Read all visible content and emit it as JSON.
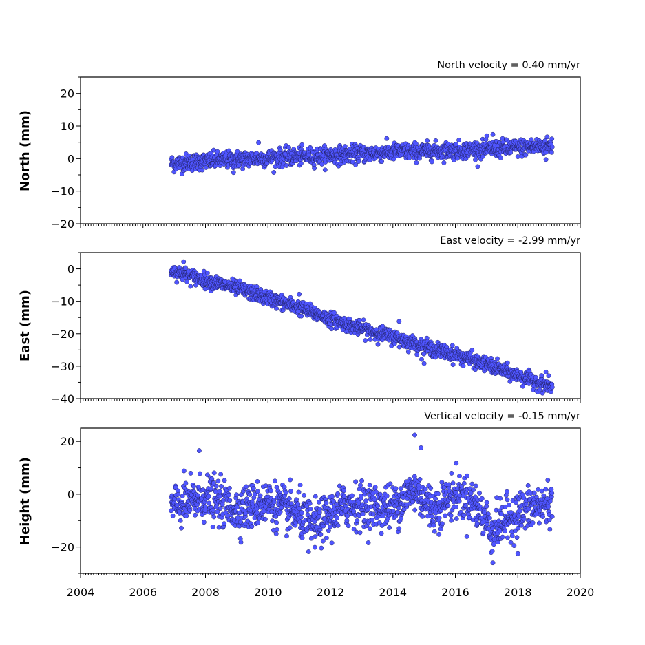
{
  "chart_data": [
    {
      "type": "scatter",
      "id": "north",
      "title": "North velocity = 0.40 mm/yr",
      "ylabel": "North (mm)",
      "xlim": [
        2004,
        2020
      ],
      "ylim": [
        -20,
        25
      ],
      "yticks": [
        20,
        10,
        0,
        -10,
        -20
      ],
      "ytick_labels": [
        "20",
        "10",
        "0",
        "−10",
        "−20"
      ],
      "series": [
        {
          "time_range": [
            2006.9,
            2019.1
          ],
          "mean_trend": [
            [
              2006.9,
              -1.5
            ],
            [
              2008.0,
              -0.8
            ],
            [
              2010.0,
              0.2
            ],
            [
              2012.0,
              1.0
            ],
            [
              2014.0,
              2.0
            ],
            [
              2016.0,
              2.5
            ],
            [
              2018.0,
              3.3
            ],
            [
              2019.1,
              4.0
            ]
          ],
          "scatter_std": 1.3,
          "outliers": [
            [
              2009.7,
              4.9
            ],
            [
              2008.9,
              -4.3
            ],
            [
              2017.2,
              7.4
            ],
            [
              2018.9,
              -0.3
            ]
          ]
        }
      ]
    },
    {
      "type": "scatter",
      "id": "east",
      "title": "East velocity = -2.99 mm/yr",
      "ylabel": "East (mm)",
      "xlim": [
        2004,
        2020
      ],
      "ylim": [
        -40,
        5
      ],
      "yticks": [
        0,
        -10,
        -20,
        -30,
        -40
      ],
      "ytick_labels": [
        "0",
        "−10",
        "−20",
        "−30",
        "−40"
      ],
      "series": [
        {
          "time_range": [
            2006.9,
            2019.1
          ],
          "mean_trend": [
            [
              2006.9,
              -0.5
            ],
            [
              2008.0,
              -3.5
            ],
            [
              2009.0,
              -6.0
            ],
            [
              2010.0,
              -9.0
            ],
            [
              2011.0,
              -12.0
            ],
            [
              2012.0,
              -15.5
            ],
            [
              2013.0,
              -18.5
            ],
            [
              2014.0,
              -21.0
            ],
            [
              2015.0,
              -24.0
            ],
            [
              2016.0,
              -26.5
            ],
            [
              2017.0,
              -29.5
            ],
            [
              2018.0,
              -33.0
            ],
            [
              2019.1,
              -36.5
            ]
          ],
          "scatter_std": 1.1,
          "outliers": [
            [
              2007.3,
              2.2
            ],
            [
              2014.2,
              -16.2
            ],
            [
              2015.0,
              -29.2
            ],
            [
              2018.9,
              -31.8
            ],
            [
              2011.0,
              -7.8
            ]
          ]
        }
      ]
    },
    {
      "type": "scatter",
      "id": "height",
      "title": "Vertical velocity = -0.15 mm/yr",
      "ylabel": "Height (mm)",
      "xlim": [
        2004,
        2020
      ],
      "ylim": [
        -30,
        25
      ],
      "yticks": [
        20,
        0,
        -20
      ],
      "ytick_labels": [
        "20",
        "0",
        "−20"
      ],
      "xticks": [
        2004,
        2006,
        2008,
        2010,
        2012,
        2014,
        2016,
        2018,
        2020
      ],
      "xtick_labels": [
        "2004",
        "2006",
        "2008",
        "2010",
        "2012",
        "2014",
        "2016",
        "2018",
        "2020"
      ],
      "series": [
        {
          "time_range": [
            2006.9,
            2019.1
          ],
          "mean_trend": [
            [
              2006.9,
              -5
            ],
            [
              2007.5,
              -3
            ],
            [
              2008.0,
              -1
            ],
            [
              2009.0,
              -6
            ],
            [
              2010.0,
              -3
            ],
            [
              2011.0,
              -8
            ],
            [
              2011.5,
              -12
            ],
            [
              2012.5,
              -4
            ],
            [
              2014.0,
              -5
            ],
            [
              2014.7,
              2
            ],
            [
              2015.3,
              -6
            ],
            [
              2016.0,
              0
            ],
            [
              2016.6,
              -3
            ],
            [
              2017.2,
              -14
            ],
            [
              2017.7,
              -9
            ],
            [
              2018.3,
              -6
            ],
            [
              2019.1,
              -3
            ]
          ],
          "scatter_std": 4.2,
          "outliers": [
            [
              2014.7,
              22.4
            ],
            [
              2014.9,
              17.6
            ],
            [
              2007.8,
              16.5
            ],
            [
              2017.2,
              -26.0
            ],
            [
              2011.3,
              -21.8
            ],
            [
              2018.0,
              -22.5
            ]
          ]
        }
      ]
    }
  ],
  "colors": {
    "marker_fill": "#4f55ff",
    "marker_edge": "#1d1d5a",
    "axes": "#000000"
  }
}
